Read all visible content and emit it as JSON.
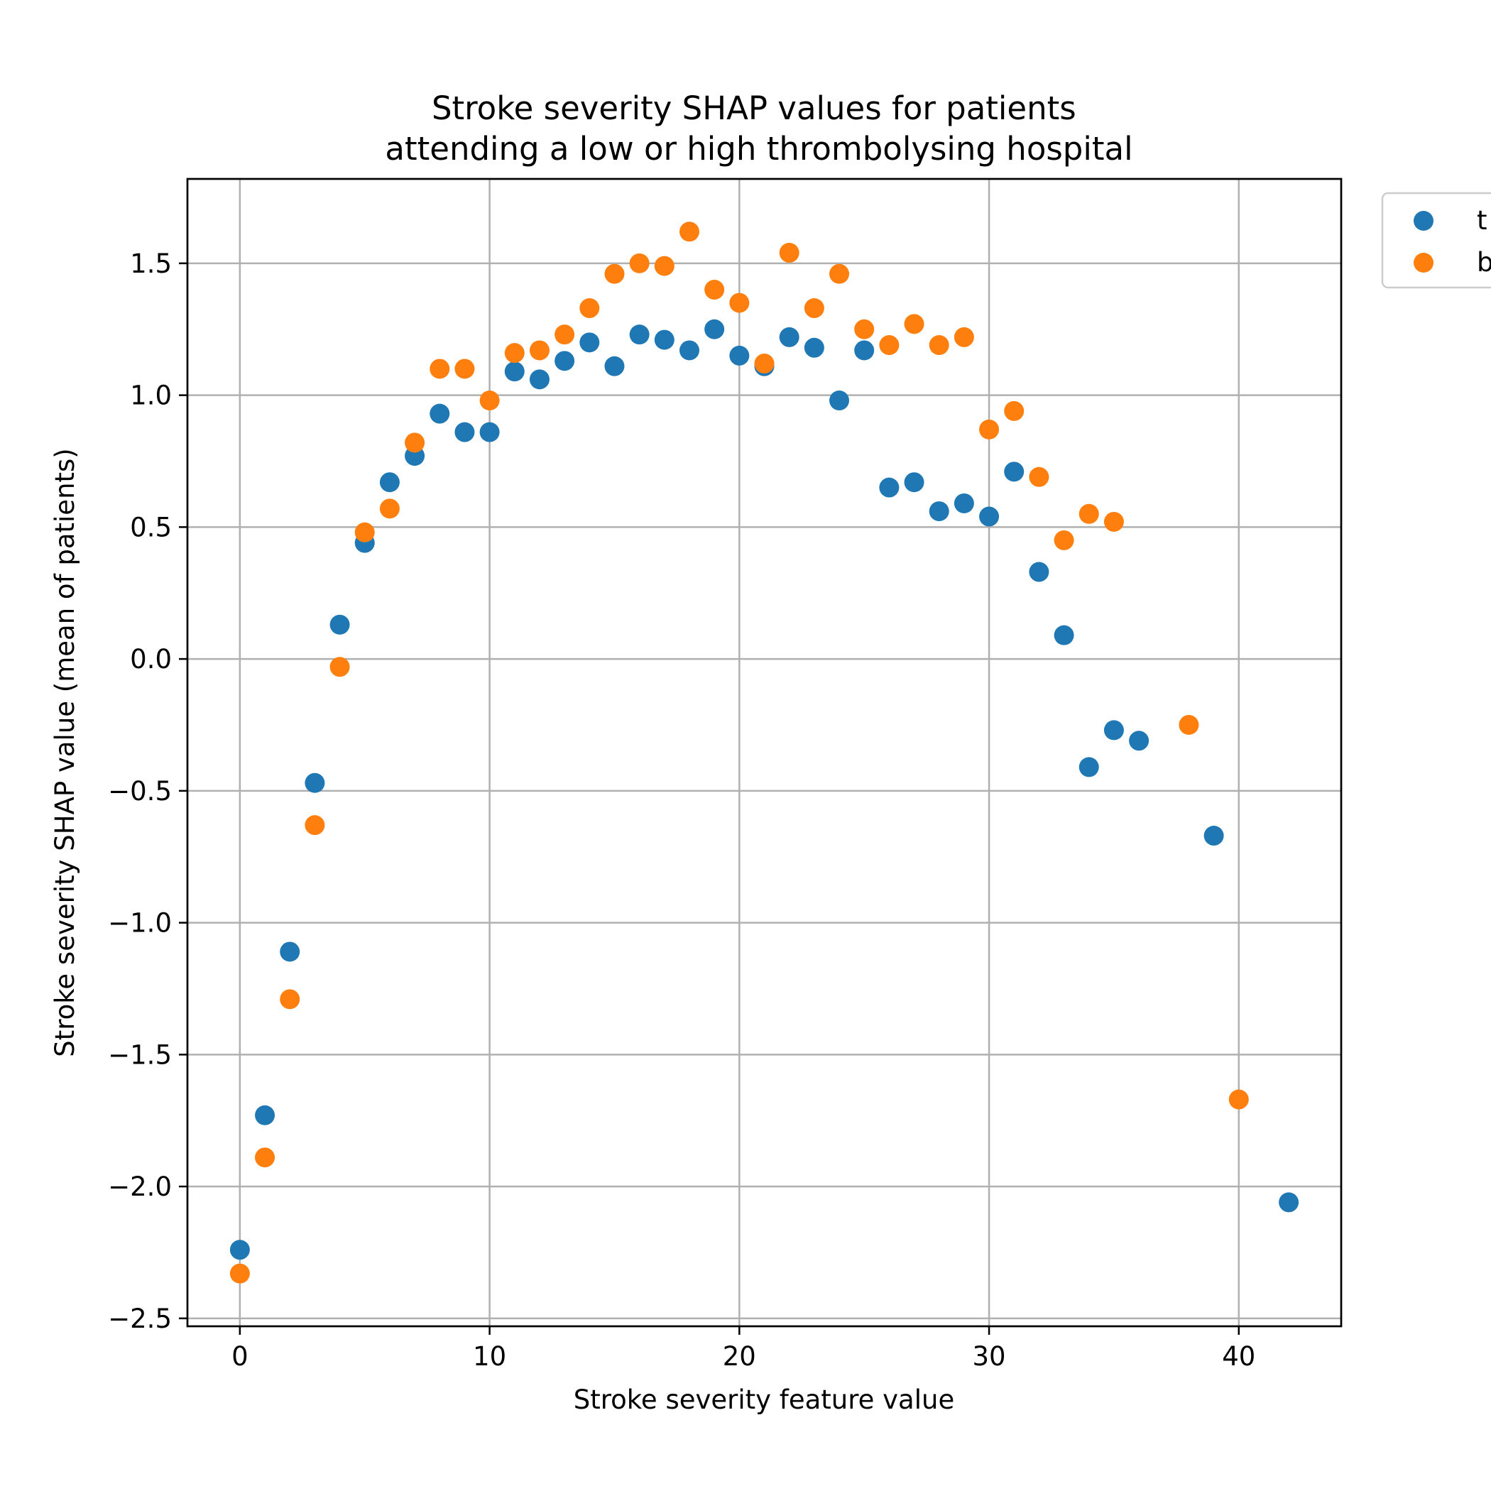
{
  "chart_data": {
    "type": "scatter",
    "title": "Stroke severity SHAP values for patients\nattending a low or high thrombolysing hospital",
    "xlabel": "Stroke severity feature value",
    "ylabel": "Stroke severity SHAP value (mean of patients)",
    "xlim": [
      -2.1,
      44.1
    ],
    "ylim": [
      -2.53,
      1.82
    ],
    "xticks": [
      0,
      10,
      20,
      30,
      40
    ],
    "yticks": [
      -2.5,
      -2.0,
      -1.5,
      -1.0,
      -0.5,
      0.0,
      0.5,
      1.0,
      1.5
    ],
    "ytick_labels": [
      "−2.5",
      "−2.0",
      "−1.5",
      "−1.0",
      "−0.5",
      "0.0",
      "0.5",
      "1.0",
      "1.5"
    ],
    "grid": true,
    "legend_position": "outside-top-right",
    "legend_visible_labels": [
      "t",
      "b"
    ],
    "series": [
      {
        "name": "t",
        "color": "#1f77b4",
        "points": [
          [
            0,
            -2.24
          ],
          [
            1,
            -1.73
          ],
          [
            2,
            -1.11
          ],
          [
            3,
            -0.47
          ],
          [
            4,
            0.13
          ],
          [
            5,
            0.44
          ],
          [
            6,
            0.67
          ],
          [
            7,
            0.77
          ],
          [
            8,
            0.93
          ],
          [
            9,
            0.86
          ],
          [
            10,
            0.86
          ],
          [
            11,
            1.09
          ],
          [
            12,
            1.06
          ],
          [
            13,
            1.13
          ],
          [
            14,
            1.2
          ],
          [
            15,
            1.11
          ],
          [
            16,
            1.23
          ],
          [
            17,
            1.21
          ],
          [
            18,
            1.17
          ],
          [
            19,
            1.25
          ],
          [
            20,
            1.15
          ],
          [
            21,
            1.11
          ],
          [
            22,
            1.22
          ],
          [
            23,
            1.18
          ],
          [
            24,
            0.98
          ],
          [
            25,
            1.17
          ],
          [
            26,
            0.65
          ],
          [
            27,
            0.67
          ],
          [
            28,
            0.56
          ],
          [
            29,
            0.59
          ],
          [
            30,
            0.54
          ],
          [
            31,
            0.71
          ],
          [
            32,
            0.33
          ],
          [
            33,
            0.09
          ],
          [
            34,
            -0.41
          ],
          [
            35,
            -0.27
          ],
          [
            36,
            -0.31
          ],
          [
            39,
            -0.67
          ],
          [
            42,
            -2.06
          ]
        ]
      },
      {
        "name": "b",
        "color": "#ff7f0e",
        "points": [
          [
            0,
            -2.33
          ],
          [
            1,
            -1.89
          ],
          [
            2,
            -1.29
          ],
          [
            3,
            -0.63
          ],
          [
            4,
            -0.03
          ],
          [
            5,
            0.48
          ],
          [
            6,
            0.57
          ],
          [
            7,
            0.82
          ],
          [
            8,
            1.1
          ],
          [
            9,
            1.1
          ],
          [
            10,
            0.98
          ],
          [
            11,
            1.16
          ],
          [
            12,
            1.17
          ],
          [
            13,
            1.23
          ],
          [
            14,
            1.33
          ],
          [
            15,
            1.46
          ],
          [
            16,
            1.5
          ],
          [
            17,
            1.49
          ],
          [
            18,
            1.62
          ],
          [
            19,
            1.4
          ],
          [
            20,
            1.35
          ],
          [
            21,
            1.12
          ],
          [
            22,
            1.54
          ],
          [
            23,
            1.33
          ],
          [
            24,
            1.46
          ],
          [
            25,
            1.25
          ],
          [
            26,
            1.19
          ],
          [
            27,
            1.27
          ],
          [
            28,
            1.19
          ],
          [
            29,
            1.22
          ],
          [
            30,
            0.87
          ],
          [
            31,
            0.94
          ],
          [
            32,
            0.69
          ],
          [
            33,
            0.45
          ],
          [
            34,
            0.55
          ],
          [
            35,
            0.52
          ],
          [
            38,
            -0.25
          ],
          [
            40,
            -1.67
          ]
        ]
      }
    ]
  }
}
